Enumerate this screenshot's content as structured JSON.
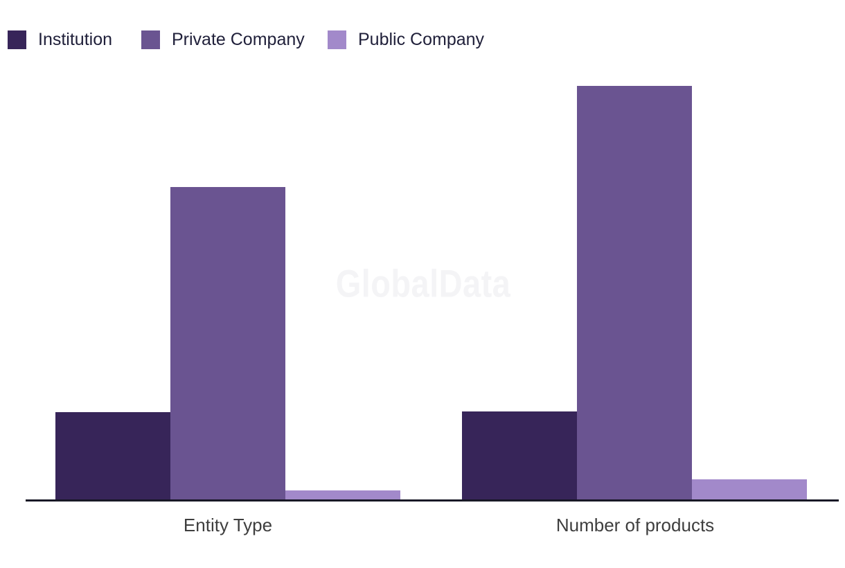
{
  "watermark": "GlobalData",
  "chart_data": {
    "type": "bar",
    "categories": [
      "Entity Type",
      "Number of products"
    ],
    "series": [
      {
        "name": "Institution",
        "color": "#372559",
        "values": [
          127,
          128
        ]
      },
      {
        "name": "Private Company",
        "color": "#6A5491",
        "values": [
          452,
          598
        ]
      },
      {
        "name": "Public Company",
        "color": "#A289CA",
        "values": [
          14,
          30
        ]
      }
    ],
    "title": "",
    "xlabel": "",
    "ylabel": "",
    "ylim": [
      0,
      650
    ],
    "y_axis_visible": false,
    "gridlines": false,
    "data_labels": false,
    "legend_position": "top-left",
    "colors": {
      "axis_line": "#181826",
      "axis_label_text": "#3E3E3E",
      "legend_text": "#20203A",
      "watermark_text": "#F4F4F6",
      "background": "#FFFFFF"
    }
  }
}
